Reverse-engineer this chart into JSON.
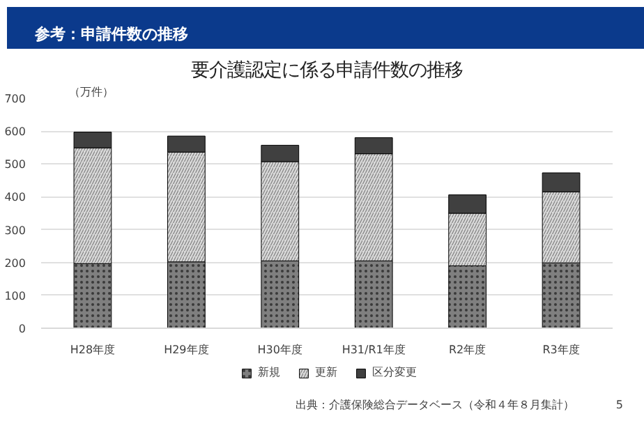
{
  "chart_data": {
    "type": "bar",
    "stacked": true,
    "title": "参考：申請件数の推移",
    "subtitle": "要介護認定に係る申請件数の推移",
    "ylabel": "（万件）",
    "categories": [
      "H28年度",
      "H29年度",
      "H30年度",
      "H31/R1年度",
      "R2年度",
      "R3年度"
    ],
    "series": [
      {
        "name": "新規",
        "color": "#7f7f7f",
        "values": [
          197,
          202,
          205,
          205,
          190,
          199
        ]
      },
      {
        "name": "更新",
        "color": "#d9d9d9",
        "values": [
          352,
          334,
          302,
          326,
          160,
          216
        ]
      },
      {
        "name": "区分変更",
        "color": "#404040",
        "values": [
          48,
          49,
          50,
          49,
          56,
          58
        ]
      }
    ],
    "ylim": [
      0,
      700
    ],
    "yticks": [
      0,
      100,
      200,
      300,
      400,
      500,
      600,
      700
    ],
    "grid": "y",
    "legend": "bottom",
    "annotations": [
      "出典：介護保険総合データベース（令和４年８月集計）",
      "5"
    ]
  }
}
